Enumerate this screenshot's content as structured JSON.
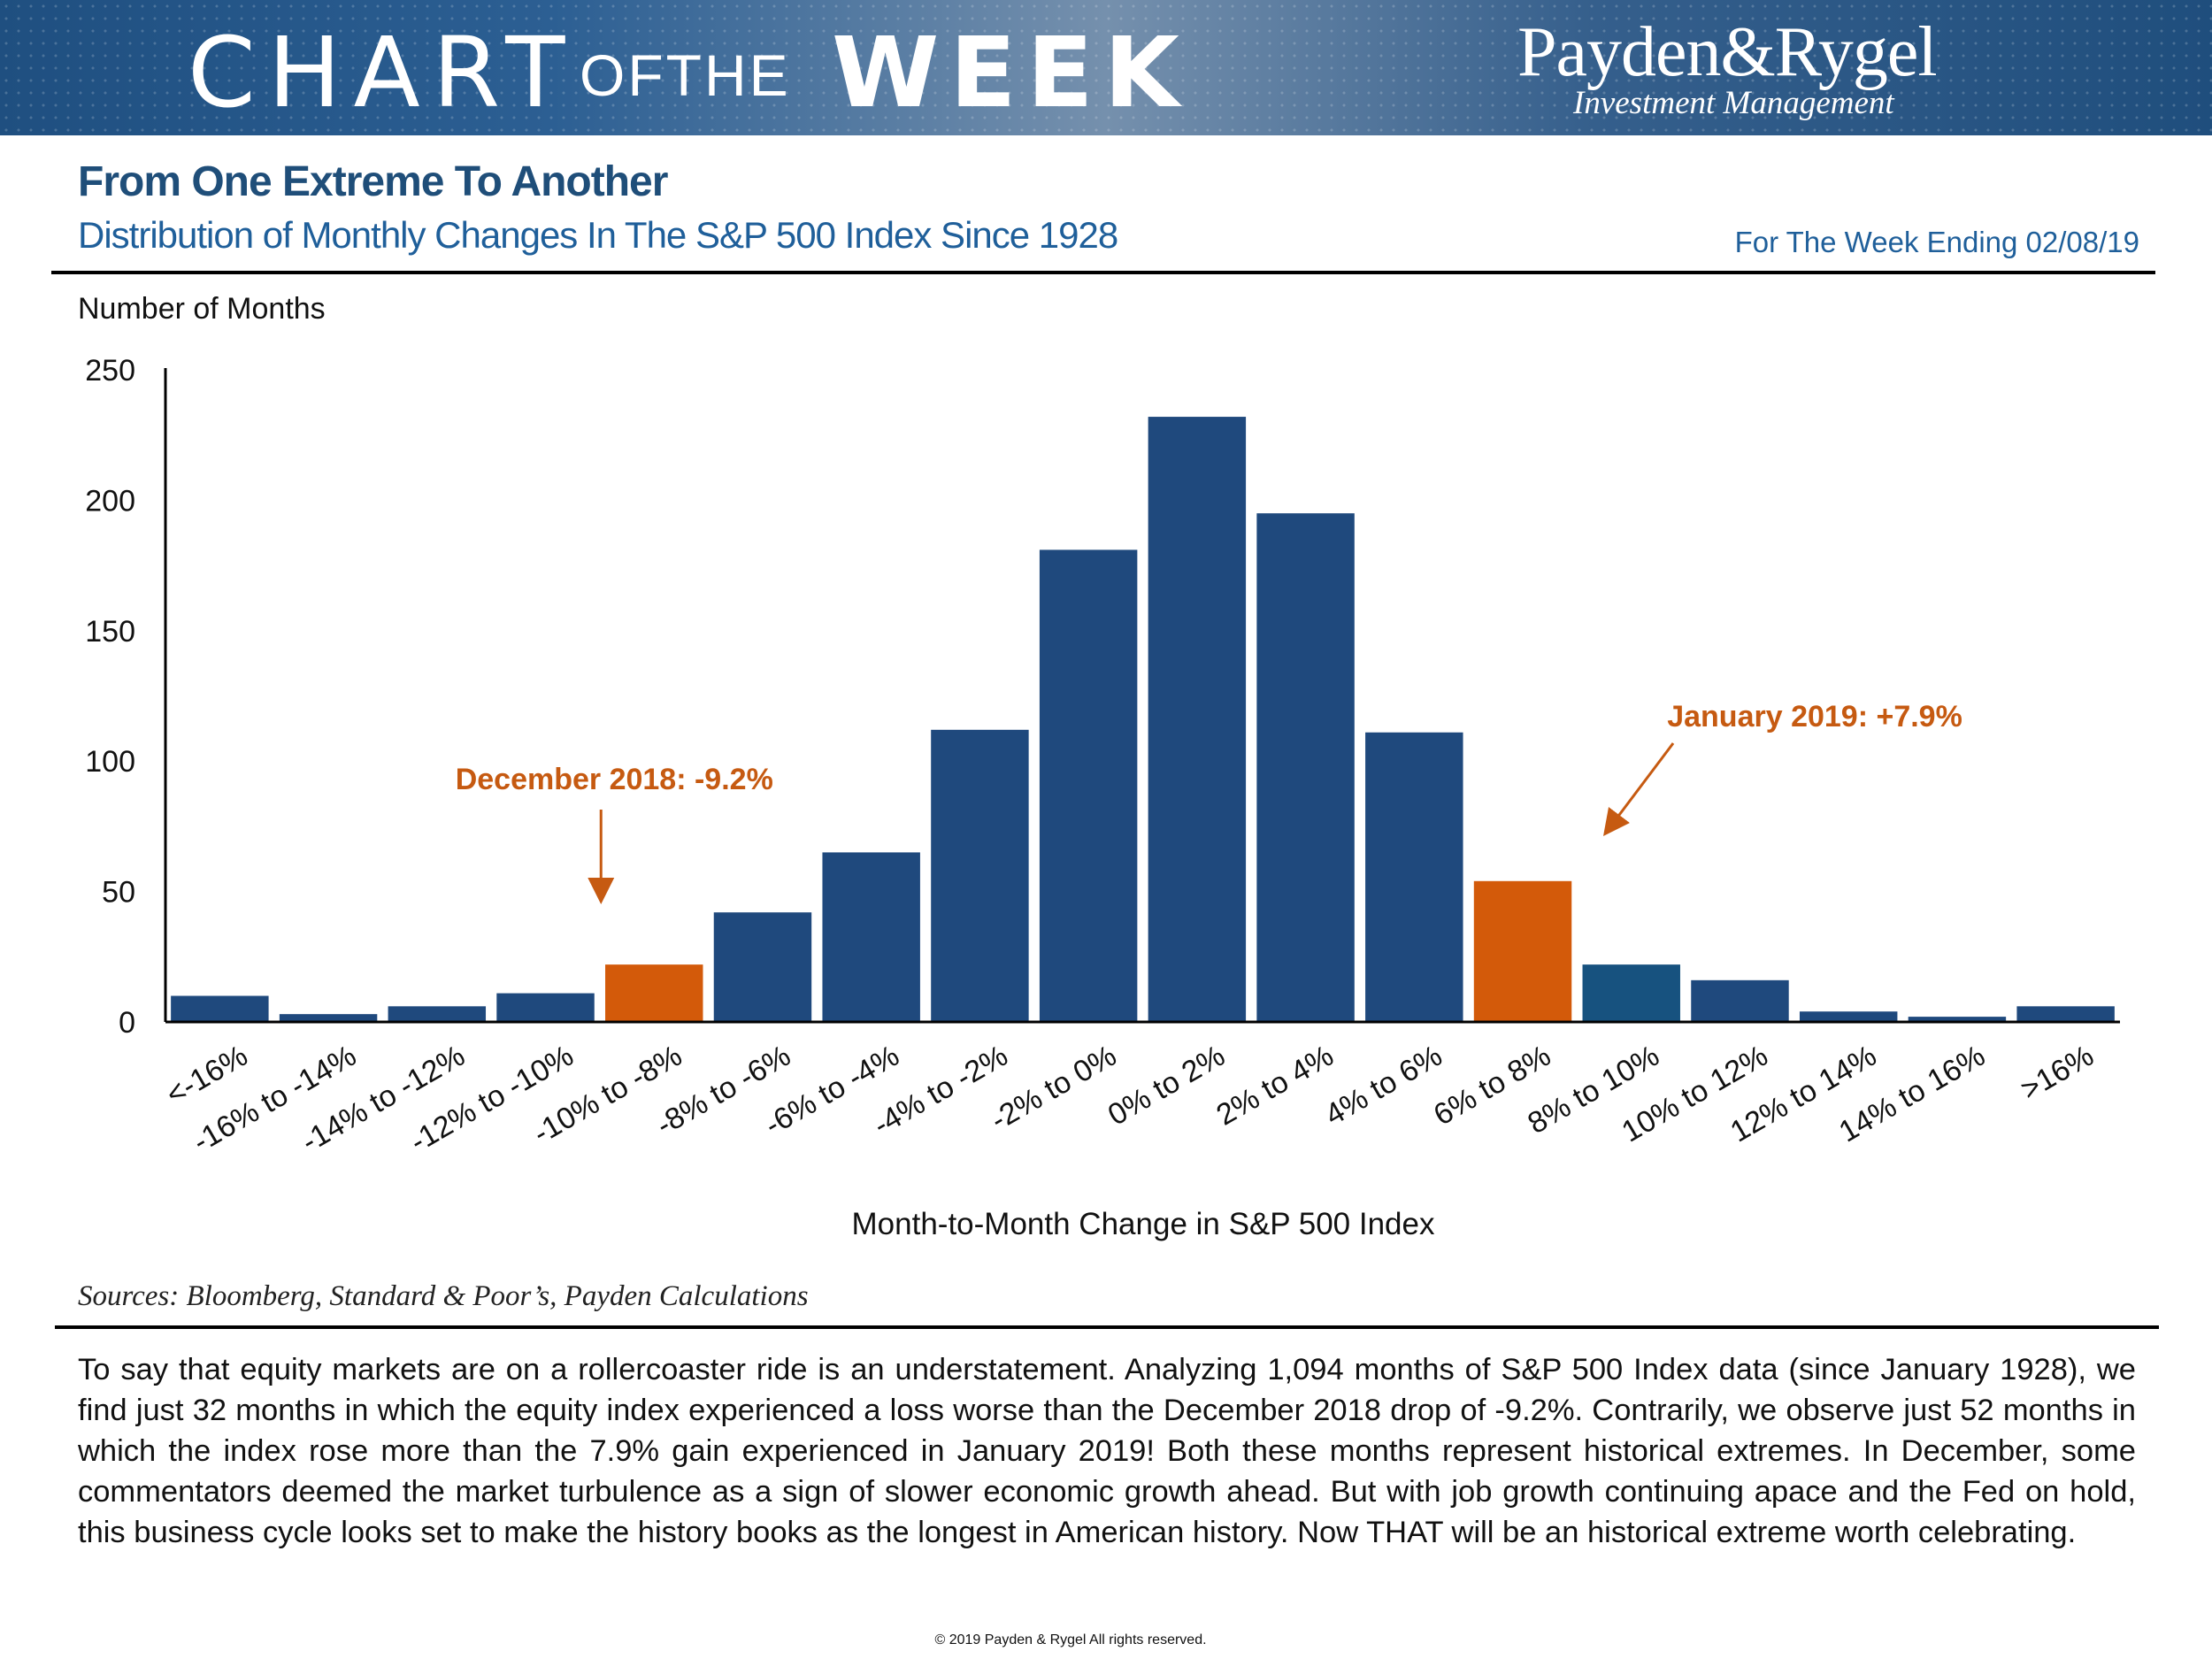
{
  "banner": {
    "chart_word": "CHART",
    "of_the_word": "OFTHE",
    "week_word": "WEEK",
    "brand_name": "Payden&Rygel",
    "brand_sub": "Investment Management"
  },
  "header": {
    "title": "From One Extreme To Another",
    "subtitle": "Distribution of Monthly Changes In The S&P 500 Index Since 1928",
    "week_ending": "For The Week Ending 02/08/19"
  },
  "colors": {
    "bar": "#1f497d",
    "bar_alt": "#17527f",
    "highlight": "#d35a0a",
    "annotation": "#c65a11"
  },
  "chart_data": {
    "type": "bar",
    "ylabel": "Number of Months",
    "xlabel": "Month-to-Month Change in S&P 500 Index",
    "ylim": [
      0,
      250
    ],
    "yticks": [
      0,
      50,
      100,
      150,
      200,
      250
    ],
    "categories": [
      "<-16%",
      "-16% to -14%",
      "-14% to -12%",
      "-12% to -10%",
      "-10% to -8%",
      "-8% to -6%",
      "-6% to -4%",
      "-4% to -2%",
      "-2% to 0%",
      "0% to 2%",
      "2% to 4%",
      "4% to 6%",
      "6% to 8%",
      "8% to 10%",
      "10% to 12%",
      "12% to 14%",
      "14% to 16%",
      ">16%"
    ],
    "values": [
      10,
      3,
      6,
      11,
      22,
      42,
      65,
      112,
      181,
      232,
      195,
      111,
      54,
      22,
      16,
      4,
      2,
      6
    ],
    "highlighted": [
      "-10% to -8%",
      "6% to 8%"
    ],
    "annotations": [
      {
        "text": "December 2018: -9.2%",
        "category": "-10% to -8%"
      },
      {
        "text": "January 2019: +7.9%",
        "category": "6% to 8%"
      }
    ]
  },
  "footer": {
    "sources": "Sources: Bloomberg, Standard & Poor’s, Payden Calculations",
    "commentary": "To say that equity markets are on a rollercoaster ride is an understatement. Analyzing 1,094 months of S&P 500 Index data (since January 1928), we find just 32 months in which the equity index experienced a loss worse than the December 2018 drop of -9.2%. Contrarily, we observe just 52 months in which the index rose more than the 7.9% gain experienced in January 2019! Both these months represent historical extremes. In December, some commentators deemed the market turbulence as a sign of slower economic growth ahead. But with job growth continuing apace and the Fed on hold, this business cycle looks set to make the history books as the longest in American history. Now THAT will be an historical extreme worth celebrating.",
    "copyright": "© 2019 Payden & Rygel All rights reserved."
  }
}
